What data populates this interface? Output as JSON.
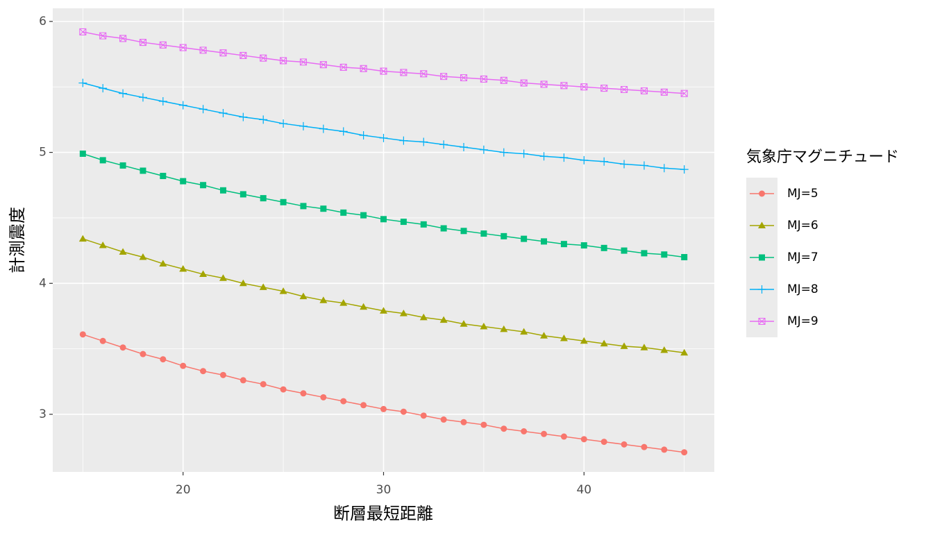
{
  "chart_data": {
    "type": "line",
    "x_label": "断層最短距離",
    "y_label": "計測震度",
    "legend_title": "気象庁マグニチュード",
    "x": [
      15,
      16,
      17,
      18,
      19,
      20,
      21,
      22,
      23,
      24,
      25,
      26,
      27,
      28,
      29,
      30,
      31,
      32,
      33,
      34,
      35,
      36,
      37,
      38,
      39,
      40,
      41,
      42,
      43,
      44,
      45
    ],
    "series": [
      {
        "name": "MJ=5",
        "color": "#F8766D",
        "shape": "circle",
        "values": [
          3.61,
          3.56,
          3.51,
          3.46,
          3.42,
          3.37,
          3.33,
          3.3,
          3.26,
          3.23,
          3.19,
          3.16,
          3.13,
          3.1,
          3.07,
          3.04,
          3.02,
          2.99,
          2.96,
          2.94,
          2.92,
          2.89,
          2.87,
          2.85,
          2.83,
          2.81,
          2.79,
          2.77,
          2.75,
          2.73,
          2.71
        ]
      },
      {
        "name": "MJ=6",
        "color": "#A3A500",
        "shape": "triangle",
        "values": [
          4.34,
          4.29,
          4.24,
          4.2,
          4.15,
          4.11,
          4.07,
          4.04,
          4.0,
          3.97,
          3.94,
          3.9,
          3.87,
          3.85,
          3.82,
          3.79,
          3.77,
          3.74,
          3.72,
          3.69,
          3.67,
          3.65,
          3.63,
          3.6,
          3.58,
          3.56,
          3.54,
          3.52,
          3.51,
          3.49,
          3.47
        ]
      },
      {
        "name": "MJ=7",
        "color": "#00BF7D",
        "shape": "square",
        "values": [
          4.99,
          4.94,
          4.9,
          4.86,
          4.82,
          4.78,
          4.75,
          4.71,
          4.68,
          4.65,
          4.62,
          4.59,
          4.57,
          4.54,
          4.52,
          4.49,
          4.47,
          4.45,
          4.42,
          4.4,
          4.38,
          4.36,
          4.34,
          4.32,
          4.3,
          4.29,
          4.27,
          4.25,
          4.23,
          4.22,
          4.2
        ]
      },
      {
        "name": "MJ=8",
        "color": "#00B0F6",
        "shape": "plus",
        "values": [
          5.53,
          5.49,
          5.45,
          5.42,
          5.39,
          5.36,
          5.33,
          5.3,
          5.27,
          5.25,
          5.22,
          5.2,
          5.18,
          5.16,
          5.13,
          5.11,
          5.09,
          5.08,
          5.06,
          5.04,
          5.02,
          5.0,
          4.99,
          4.97,
          4.96,
          4.94,
          4.93,
          4.91,
          4.9,
          4.88,
          4.87
        ]
      },
      {
        "name": "MJ=9",
        "color": "#E76BF3",
        "shape": "square-cross",
        "values": [
          5.92,
          5.89,
          5.87,
          5.84,
          5.82,
          5.8,
          5.78,
          5.76,
          5.74,
          5.72,
          5.7,
          5.69,
          5.67,
          5.65,
          5.64,
          5.62,
          5.61,
          5.6,
          5.58,
          5.57,
          5.56,
          5.55,
          5.53,
          5.52,
          5.51,
          5.5,
          5.49,
          5.48,
          5.47,
          5.46,
          5.45
        ]
      }
    ],
    "xlim": [
      13.5,
      46.5
    ],
    "xticks": [
      20,
      30,
      40
    ],
    "ylim": [
      2.56,
      6.1
    ],
    "yticks": [
      3,
      4,
      5,
      6
    ],
    "grid": true,
    "legend": "right"
  }
}
